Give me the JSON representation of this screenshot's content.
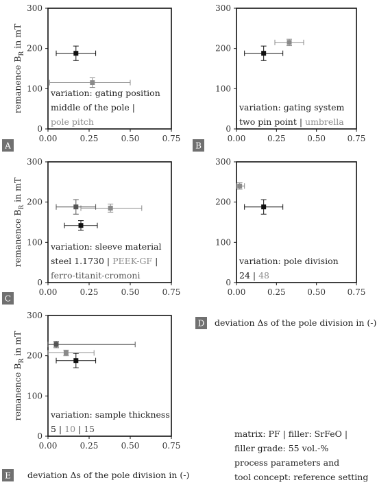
{
  "figure": {
    "footnote": [
      "matrix: PF | filler: SrFeO |",
      "filler grade: 55 vol.-%",
      "process parameters and",
      "tool concept: reference setting"
    ],
    "xlabel_D": "deviation Δs of the pole division in (-)",
    "xlabel_E": "deviation Δs of the pole division in (-)"
  },
  "chart_data": [
    {
      "id": "A",
      "type": "scatter",
      "ylabel": "remanence B_R in mT",
      "xlim": [
        0,
        0.75
      ],
      "ylim": [
        0,
        300
      ],
      "xticks": [
        "0.00",
        "0.25",
        "0.50",
        "0.75"
      ],
      "yticks": [
        "0",
        "100",
        "200",
        "300"
      ],
      "series": [
        {
          "color": "#111111",
          "x": 0.17,
          "y": 188,
          "xerr": [
            0.05,
            0.29
          ],
          "yerr": [
            170,
            206
          ]
        },
        {
          "color": "#8a8a8a",
          "x": 0.27,
          "y": 115,
          "xerr": [
            0.01,
            0.5
          ],
          "yerr": [
            103,
            127
          ]
        }
      ],
      "annotation": [
        [
          {
            "text": "variation: gating position",
            "color": "#222222"
          }
        ],
        [
          {
            "text": "middle of the pole",
            "color": "#222222"
          },
          {
            "text": " | ",
            "color": "#222222"
          }
        ],
        [
          {
            "text": "pole pitch",
            "color": "#8a8a8a"
          }
        ]
      ]
    },
    {
      "id": "B",
      "type": "scatter",
      "ylabel": "",
      "xlim": [
        0,
        0.75
      ],
      "ylim": [
        0,
        300
      ],
      "xticks": [
        "0.00",
        "0.25",
        "0.50",
        "0.75"
      ],
      "yticks": [
        "0",
        "100",
        "200",
        "300"
      ],
      "series": [
        {
          "color": "#111111",
          "x": 0.17,
          "y": 188,
          "xerr": [
            0.05,
            0.29
          ],
          "yerr": [
            170,
            206
          ]
        },
        {
          "color": "#8a8a8a",
          "x": 0.33,
          "y": 215,
          "xerr": [
            0.24,
            0.42
          ],
          "yerr": [
            207,
            223
          ]
        }
      ],
      "annotation": [
        [
          {
            "text": "variation: gating system",
            "color": "#222222"
          }
        ],
        [
          {
            "text": "two pin point",
            "color": "#222222"
          },
          {
            "text": " | ",
            "color": "#222222"
          },
          {
            "text": "umbrella",
            "color": "#8a8a8a"
          }
        ]
      ]
    },
    {
      "id": "C",
      "type": "scatter",
      "ylabel": "remanence B_R in mT",
      "xlim": [
        0,
        0.75
      ],
      "ylim": [
        0,
        300
      ],
      "xticks": [
        "0.00",
        "0.25",
        "0.50",
        "0.75"
      ],
      "yticks": [
        "0",
        "100",
        "200",
        "300"
      ],
      "series": [
        {
          "color": "#111111",
          "x": 0.2,
          "y": 142,
          "xerr": [
            0.1,
            0.3
          ],
          "yerr": [
            130,
            154
          ]
        },
        {
          "color": "#8a8a8a",
          "x": 0.38,
          "y": 185,
          "xerr": [
            0.2,
            0.57
          ],
          "yerr": [
            175,
            195
          ]
        },
        {
          "color": "#555555",
          "x": 0.17,
          "y": 188,
          "xerr": [
            0.05,
            0.29
          ],
          "yerr": [
            170,
            206
          ]
        }
      ],
      "annotation": [
        [
          {
            "text": "variation: sleeve material",
            "color": "#222222"
          }
        ],
        [
          {
            "text": "steel 1.1730",
            "color": "#222222"
          },
          {
            "text": " | ",
            "color": "#222222"
          },
          {
            "text": "PEEK-GF",
            "color": "#8a8a8a"
          },
          {
            "text": " | ",
            "color": "#222222"
          }
        ],
        [
          {
            "text": "ferro-titanit-cromoni",
            "color": "#555555"
          }
        ]
      ]
    },
    {
      "id": "D",
      "type": "scatter",
      "ylabel": "",
      "xlim": [
        0,
        0.75
      ],
      "ylim": [
        0,
        300
      ],
      "xticks": [
        "0.00",
        "0.25",
        "0.50",
        "0.75"
      ],
      "yticks": [
        "0",
        "100",
        "200",
        "300"
      ],
      "series": [
        {
          "color": "#111111",
          "x": 0.17,
          "y": 188,
          "xerr": [
            0.05,
            0.29
          ],
          "yerr": [
            170,
            206
          ]
        },
        {
          "color": "#8a8a8a",
          "x": 0.02,
          "y": 240,
          "xerr": [
            0.0,
            0.05
          ],
          "yerr": [
            232,
            248
          ]
        }
      ],
      "annotation": [
        [
          {
            "text": "variation: pole division",
            "color": "#222222"
          }
        ],
        [
          {
            "text": "24",
            "color": "#111111"
          },
          {
            "text": " | ",
            "color": "#222222"
          },
          {
            "text": "48",
            "color": "#8a8a8a"
          }
        ]
      ]
    },
    {
      "id": "E",
      "type": "scatter",
      "ylabel": "remanence B_R in mT",
      "xlim": [
        0,
        0.75
      ],
      "ylim": [
        0,
        300
      ],
      "xticks": [
        "0.00",
        "0.25",
        "0.50",
        "0.75"
      ],
      "yticks": [
        "0",
        "100",
        "200",
        "300"
      ],
      "series": [
        {
          "color": "#111111",
          "x": 0.17,
          "y": 188,
          "xerr": [
            0.05,
            0.29
          ],
          "yerr": [
            170,
            206
          ]
        },
        {
          "color": "#8a8a8a",
          "x": 0.11,
          "y": 207,
          "xerr": [
            0.0,
            0.28
          ],
          "yerr": [
            200,
            214
          ]
        },
        {
          "color": "#555555",
          "x": 0.05,
          "y": 228,
          "xerr": [
            0.0,
            0.53
          ],
          "yerr": [
            220,
            236
          ]
        }
      ],
      "annotation": [
        [
          {
            "text": "variation: sample thickness",
            "color": "#222222"
          }
        ],
        [
          {
            "text": "5",
            "color": "#111111"
          },
          {
            "text": " | ",
            "color": "#222222"
          },
          {
            "text": "10",
            "color": "#8a8a8a"
          },
          {
            "text": " | ",
            "color": "#222222"
          },
          {
            "text": "15",
            "color": "#555555"
          }
        ]
      ]
    }
  ]
}
